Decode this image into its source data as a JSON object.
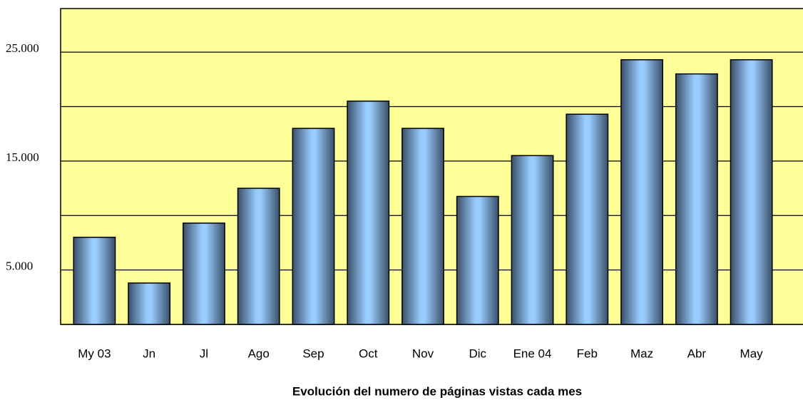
{
  "chart_data": {
    "type": "bar",
    "title": "Evolución del numero de páginas vistas cada mes",
    "categories": [
      "My 03",
      "Jn",
      "Jl",
      "Ago",
      "Sep",
      "Oct",
      "Nov",
      "Dic",
      "Ene 04",
      "Feb",
      "Maz",
      "Abr",
      "May"
    ],
    "values": [
      8000,
      3800,
      9300,
      12500,
      18000,
      20500,
      18000,
      11750,
      15500,
      19300,
      24300,
      23000,
      24300
    ],
    "color": "#99ccff",
    "ylim": [
      0,
      29000
    ],
    "yticks": [
      {
        "value": 5000,
        "label": "5.000"
      },
      {
        "value": 15000,
        "label": "15.000"
      },
      {
        "value": 25000,
        "label": "25.000"
      }
    ],
    "minor_yticks": [
      0,
      10000,
      20000
    ],
    "grid": true,
    "background": "#ffff99"
  }
}
